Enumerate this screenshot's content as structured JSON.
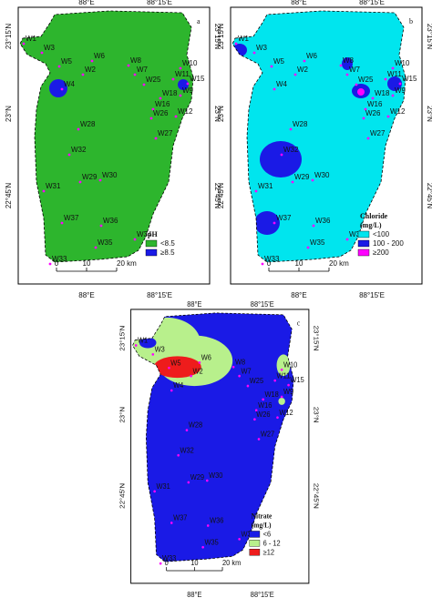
{
  "panels": [
    {
      "label": "a",
      "base": "#2db52d",
      "legend": {
        "title": [
          "pH"
        ],
        "items": [
          {
            "label": "<8.5",
            "color": "#2db52d"
          },
          {
            "label": "≥8.5",
            "color": "#1a1ae6"
          }
        ]
      }
    },
    {
      "label": "b",
      "base": "#00e5ee",
      "legend": {
        "title": [
          "Chloride",
          "(mg/L)"
        ],
        "items": [
          {
            "label": "<100",
            "color": "#00e5ee"
          },
          {
            "label": "100 - 200",
            "color": "#1a1ae6"
          },
          {
            "label": "≥200",
            "color": "#ff00ff"
          }
        ]
      }
    },
    {
      "label": "c",
      "base": "#1a1ae6",
      "legend": {
        "title": [
          "Nitrate",
          "(mg/L)"
        ],
        "items": [
          {
            "label": "<6",
            "color": "#1a1ae6"
          },
          {
            "label": "6 - 12",
            "color": "#b8f08c"
          },
          {
            "label": "≥12",
            "color": "#ee1c1c"
          }
        ]
      }
    }
  ],
  "lon_labels": [
    "88°E",
    "88°15'E"
  ],
  "lat_labels": [
    "23°15'N",
    "23°N",
    "22°45'N"
  ],
  "scale": [
    "0",
    "10",
    "20 km"
  ],
  "wells": [
    "W1",
    "W3",
    "W5",
    "W6",
    "W2",
    "W8",
    "W7",
    "W10",
    "W11",
    "W15",
    "W4",
    "W25",
    "W9",
    "W18",
    "W16",
    "W12",
    "W26",
    "W28",
    "W27",
    "W32",
    "W29",
    "W30",
    "W31",
    "W37",
    "W36",
    "W35",
    "W34",
    "W33"
  ]
}
